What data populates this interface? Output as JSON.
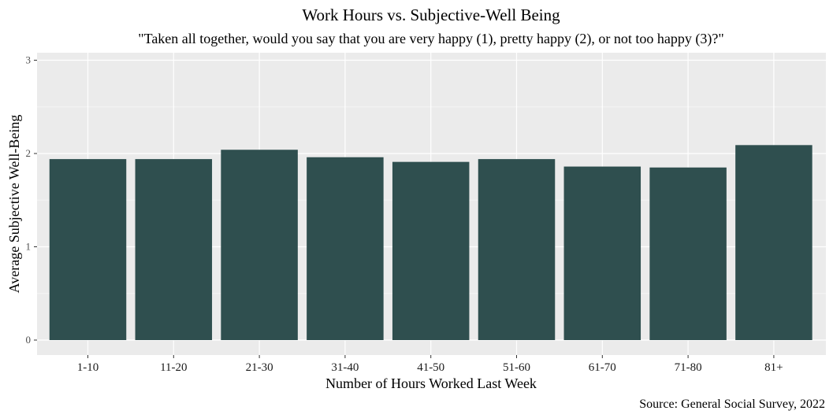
{
  "chart_data": {
    "type": "bar",
    "title": "Work Hours vs. Subjective-Well Being",
    "subtitle": "\"Taken all together, would you say that you are very happy (1), pretty happy (2), or not too happy (3)?\"",
    "xlabel": "Number of Hours Worked Last Week",
    "ylabel": "Average Subjective Well-Being",
    "caption": "Source: General Social Survey, 2022",
    "categories": [
      "1-10",
      "11-20",
      "21-30",
      "31-40",
      "41-50",
      "51-60",
      "61-70",
      "71-80",
      "81+"
    ],
    "values": [
      1.94,
      1.94,
      2.04,
      1.96,
      1.91,
      1.94,
      1.86,
      1.85,
      2.09
    ],
    "ylim": [
      0,
      3.08
    ],
    "yticks": [
      "0",
      "1",
      "2",
      "3"
    ],
    "grid": true,
    "bar_color": "#2f4f4f",
    "panel_color": "#ebebeb"
  }
}
